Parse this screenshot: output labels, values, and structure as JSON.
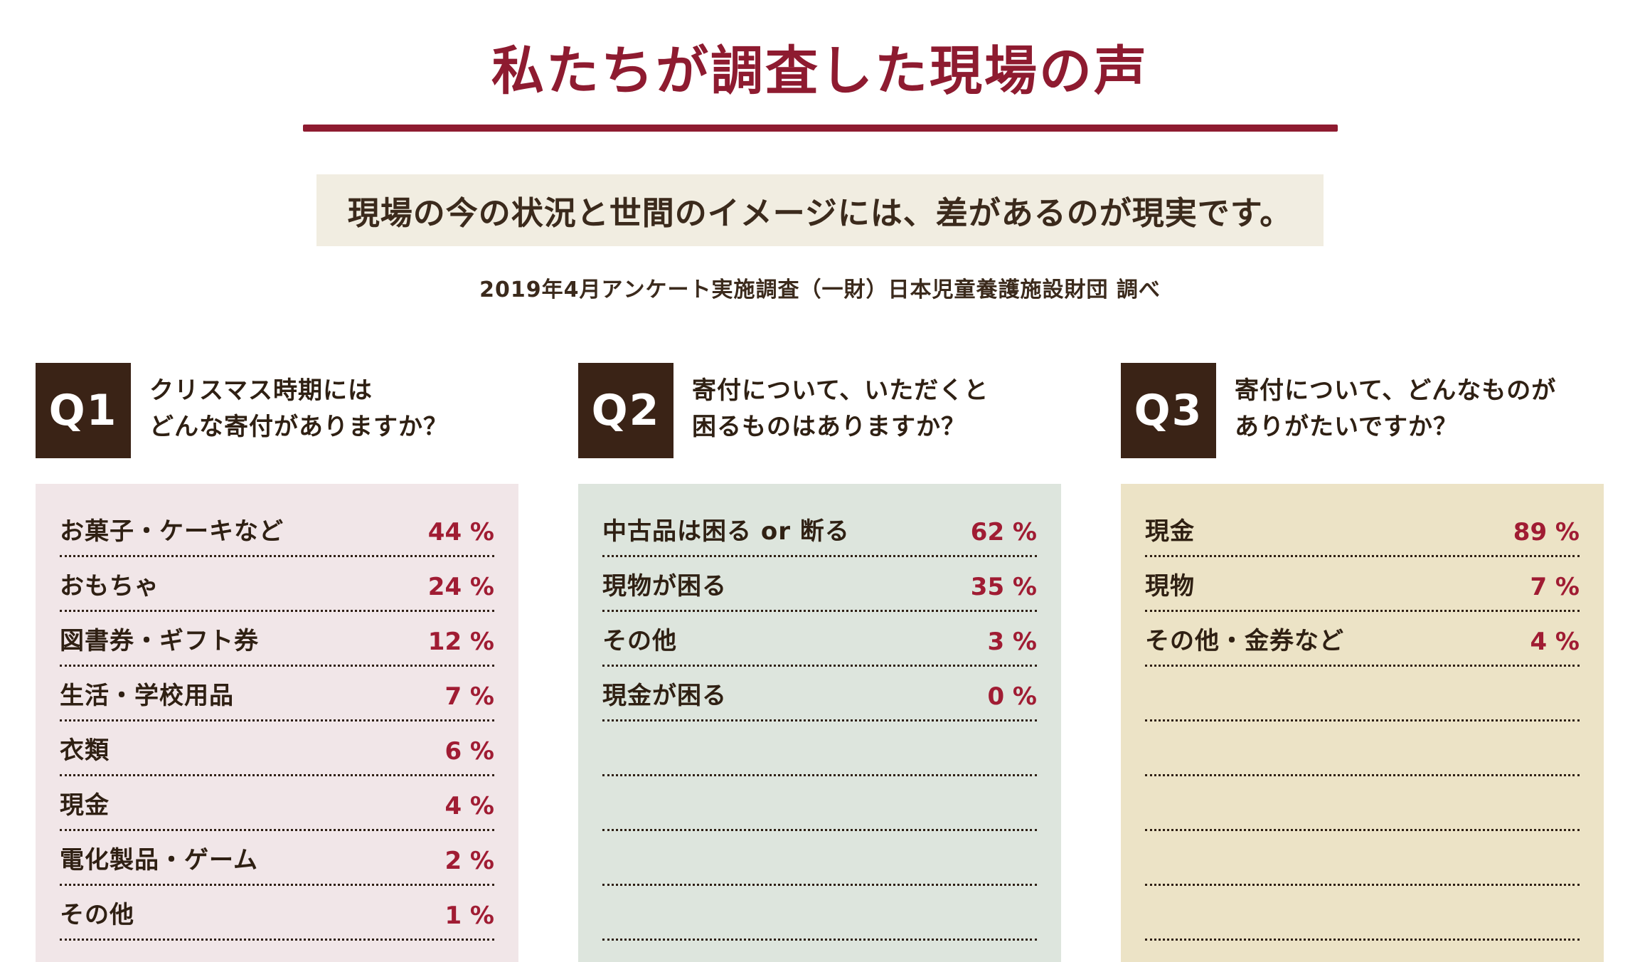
{
  "page": {
    "title": "私たちが調査した現場の声",
    "subtitle": "現場の今の状況と世間のイメージには、差があるのが現実です。",
    "source": "2019年4月アンケート実施調査（一財）日本児童養護施設財団 調べ"
  },
  "colors": {
    "maroon": "#8E1B30",
    "value_red": "#A01C33",
    "dark_brown": "#2F2013",
    "badge_bg": "#3A2316",
    "subtitle_bg": "#F1EDE1",
    "q1_panel_bg": "#F1E6E8",
    "q2_panel_bg": "#DDE5DD",
    "q3_panel_bg": "#ECE3C6"
  },
  "questions": [
    {
      "id": "Q1",
      "heading_lines": [
        "クリスマス時期には",
        "どんな寄付がありますか？"
      ],
      "rows": [
        {
          "label": "お菓子・ケーキなど",
          "value": "44 %"
        },
        {
          "label": "おもちゃ",
          "value": "24 %"
        },
        {
          "label": "図書券・ギフト券",
          "value": "12 %"
        },
        {
          "label": "生活・学校用品",
          "value": "7 %"
        },
        {
          "label": "衣類",
          "value": "6 %"
        },
        {
          "label": "現金",
          "value": "4 %"
        },
        {
          "label": "電化製品・ゲーム",
          "value": "2 %"
        },
        {
          "label": "その他",
          "value": "1 %"
        }
      ]
    },
    {
      "id": "Q2",
      "heading_lines": [
        "寄付について、いただくと",
        "困るものはありますか？"
      ],
      "rows": [
        {
          "label": "中古品は困る or 断る",
          "value": "62 %"
        },
        {
          "label": "現物が困る",
          "value": "35 %"
        },
        {
          "label": "その他",
          "value": "3 %"
        },
        {
          "label": "現金が困る",
          "value": "0 %"
        }
      ]
    },
    {
      "id": "Q3",
      "heading_lines": [
        "寄付について、どんなものが",
        "ありがたいですか？"
      ],
      "rows": [
        {
          "label": "現金",
          "value": "89 %"
        },
        {
          "label": "現物",
          "value": "7 %"
        },
        {
          "label": "その他・金券など",
          "value": "4 %"
        }
      ]
    }
  ],
  "chart_data": [
    {
      "type": "table",
      "title": "Q1 クリスマス時期にはどんな寄付がありますか？",
      "categories": [
        "お菓子・ケーキなど",
        "おもちゃ",
        "図書券・ギフト券",
        "生活・学校用品",
        "衣類",
        "現金",
        "電化製品・ゲーム",
        "その他"
      ],
      "values": [
        44,
        24,
        12,
        7,
        6,
        4,
        2,
        1
      ],
      "unit": "%"
    },
    {
      "type": "table",
      "title": "Q2 寄付について、いただくと困るものはありますか？",
      "categories": [
        "中古品は困る or 断る",
        "現物が困る",
        "その他",
        "現金が困る"
      ],
      "values": [
        62,
        35,
        3,
        0
      ],
      "unit": "%"
    },
    {
      "type": "table",
      "title": "Q3 寄付について、どんなものがありがたいですか？",
      "categories": [
        "現金",
        "現物",
        "その他・金券など"
      ],
      "values": [
        89,
        7,
        4
      ],
      "unit": "%"
    }
  ]
}
